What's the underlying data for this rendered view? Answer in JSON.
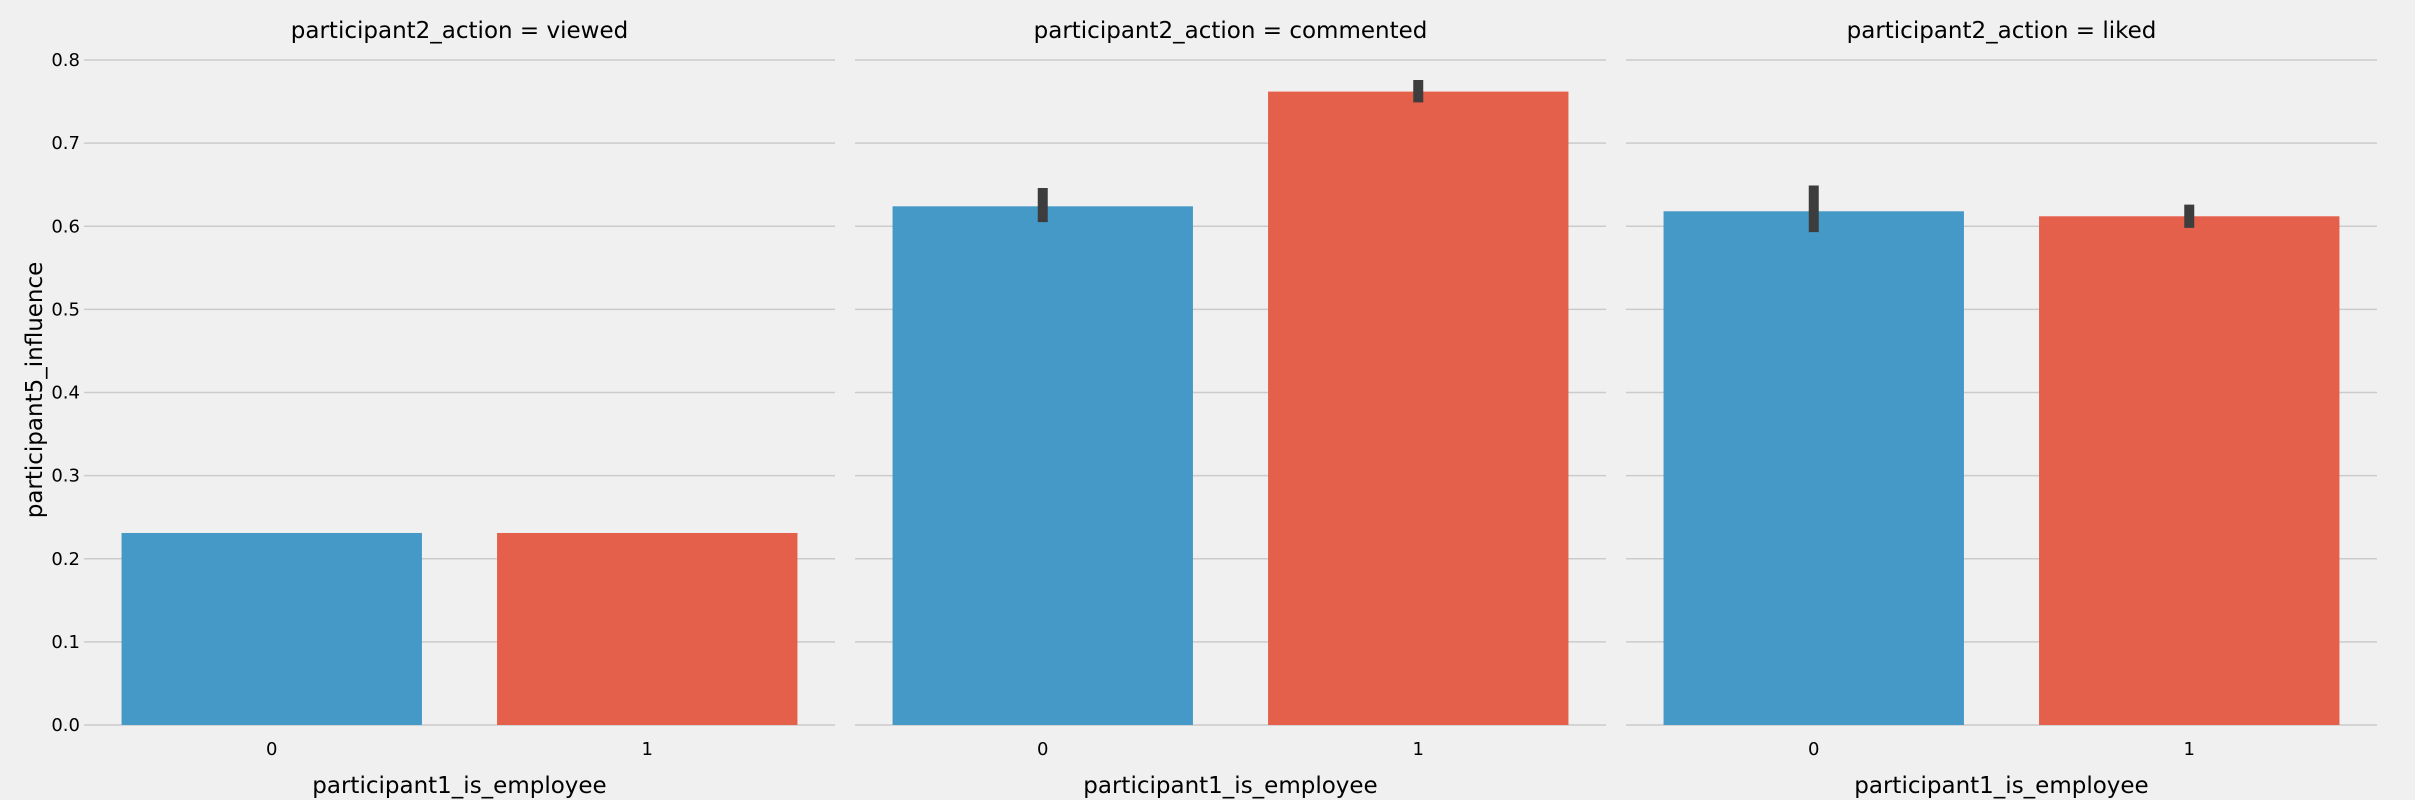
{
  "chart_data": {
    "type": "bar",
    "facet_variable": "participant2_action",
    "ylabel": "participant5_influence",
    "xlabel": "participant1_is_employee",
    "ylim": [
      0,
      0.8
    ],
    "yticks": [
      0.0,
      0.1,
      0.2,
      0.3,
      0.4,
      0.5,
      0.6,
      0.7,
      0.8
    ],
    "ytick_labels": [
      "0.0",
      "0.1",
      "0.2",
      "0.3",
      "0.4",
      "0.5",
      "0.6",
      "0.7",
      "0.8"
    ],
    "categories": [
      "0",
      "1"
    ],
    "grid": "horizontal",
    "colors": [
      "#4599c7",
      "#e4604a"
    ],
    "errorbar_color": "#3d3d3d",
    "panels": [
      {
        "title": "participant2_action = viewed",
        "values": [
          0.231,
          0.231
        ],
        "error_low": [
          0.231,
          0.231
        ],
        "error_high": [
          0.231,
          0.231
        ]
      },
      {
        "title": "participant2_action = commented",
        "values": [
          0.624,
          0.762
        ],
        "error_low": [
          0.605,
          0.749
        ],
        "error_high": [
          0.646,
          0.776
        ]
      },
      {
        "title": "participant2_action = liked",
        "values": [
          0.618,
          0.612
        ],
        "error_low": [
          0.593,
          0.598
        ],
        "error_high": [
          0.649,
          0.626
        ]
      }
    ]
  }
}
